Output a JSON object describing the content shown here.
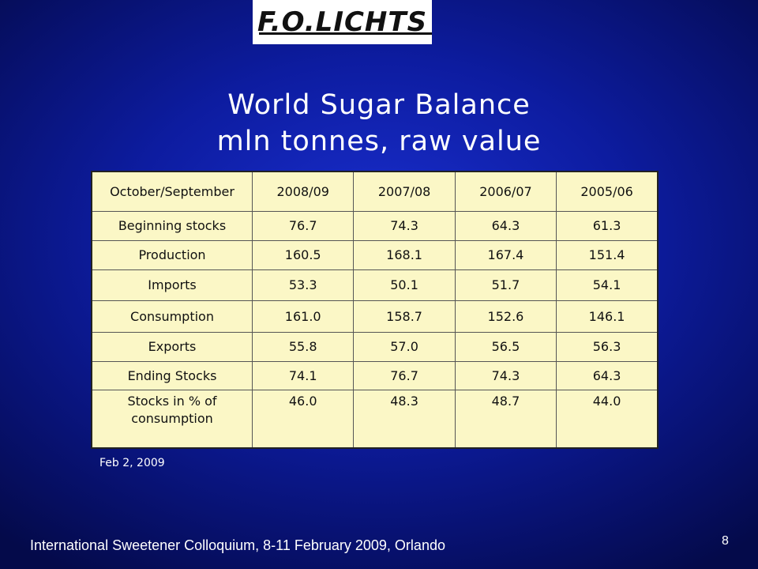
{
  "logo": {
    "text": "F.O.LICHTS"
  },
  "title": {
    "line1": "World Sugar Balance",
    "line2": "mln tonnes, raw value"
  },
  "table": {
    "header": [
      "October/September",
      "2008/09",
      "2007/08",
      "2006/07",
      "2005/06"
    ],
    "rows": [
      {
        "label": "Beginning stocks",
        "values": [
          "76.7",
          "74.3",
          "64.3",
          "61.3"
        ]
      },
      {
        "label": "Production",
        "values": [
          "160.5",
          "168.1",
          "167.4",
          "151.4"
        ]
      },
      {
        "label": "Imports",
        "values": [
          "53.3",
          "50.1",
          "51.7",
          "54.1"
        ]
      },
      {
        "label": "Consumption",
        "values": [
          "161.0",
          "158.7",
          "152.6",
          "146.1"
        ]
      },
      {
        "label": "Exports",
        "values": [
          "55.8",
          "57.0",
          "56.5",
          "56.3"
        ]
      },
      {
        "label": "Ending Stocks",
        "values": [
          "74.1",
          "76.7",
          "74.3",
          "64.3"
        ]
      },
      {
        "label": "Stocks in % of consumption",
        "values": [
          "46.0",
          "48.3",
          "48.7",
          "44.0"
        ]
      }
    ]
  },
  "date": "Feb 2, 2009",
  "footer": "International Sweetener Colloquium, 8-11 February 2009, Orlando",
  "page_number": "8"
}
